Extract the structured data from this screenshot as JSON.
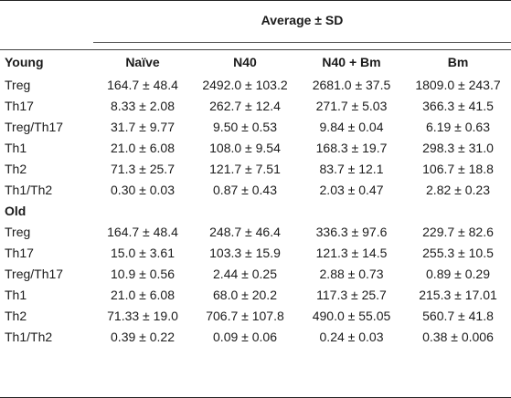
{
  "table": {
    "super_header": "Average ± SD",
    "columns": [
      "Young",
      "Naïve",
      "N40",
      "N40 + Bm",
      "Bm"
    ],
    "young_rows": [
      {
        "label": "Treg",
        "values": [
          "164.7 ± 48.4",
          "2492.0 ± 103.2",
          "2681.0 ± 37.5",
          "1809.0 ± 243.7"
        ]
      },
      {
        "label": "Th17",
        "values": [
          "8.33 ± 2.08",
          "262.7 ± 12.4",
          "271.7 ± 5.03",
          "366.3 ± 41.5"
        ]
      },
      {
        "label": "Treg/Th17",
        "values": [
          "31.7 ± 9.77",
          "9.50 ± 0.53",
          "9.84 ± 0.04",
          "6.19 ± 0.63"
        ]
      },
      {
        "label": "Th1",
        "values": [
          "21.0 ± 6.08",
          "108.0 ± 9.54",
          "168.3 ± 19.7",
          "298.3 ± 31.0"
        ]
      },
      {
        "label": "Th2",
        "values": [
          "71.3 ± 25.7",
          "121.7 ± 7.51",
          "83.7 ± 12.1",
          "106.7 ± 18.8"
        ]
      },
      {
        "label": "Th1/Th2",
        "values": [
          "0.30 ± 0.03",
          "0.87 ± 0.43",
          "2.03 ± 0.47",
          "2.82 ± 0.23"
        ]
      }
    ],
    "old_label": "Old",
    "old_rows": [
      {
        "label": "Treg",
        "values": [
          "164.7 ± 48.4",
          "248.7 ± 46.4",
          "336.3 ± 97.6",
          "229.7 ± 82.6"
        ]
      },
      {
        "label": "Th17",
        "values": [
          "15.0 ± 3.61",
          "103.3 ± 15.9",
          "121.3 ± 14.5",
          "255.3 ± 10.5"
        ]
      },
      {
        "label": "Treg/Th17",
        "values": [
          "10.9 ± 0.56",
          "2.44 ± 0.25",
          "2.88 ± 0.73",
          "0.89 ± 0.29"
        ]
      },
      {
        "label": "Th1",
        "values": [
          "21.0 ± 6.08",
          "68.0 ± 20.2",
          "117.3 ± 25.7",
          "215.3 ± 17.01"
        ]
      },
      {
        "label": "Th2",
        "values": [
          "71.33 ± 19.0",
          "706.7 ± 107.8",
          "490.0 ± 55.05",
          "560.7 ± 41.8"
        ]
      },
      {
        "label": "Th1/Th2",
        "values": [
          "0.39 ± 0.22",
          "0.09 ± 0.06",
          "0.24 ± 0.03",
          "0.38 ± 0.006"
        ]
      }
    ]
  }
}
